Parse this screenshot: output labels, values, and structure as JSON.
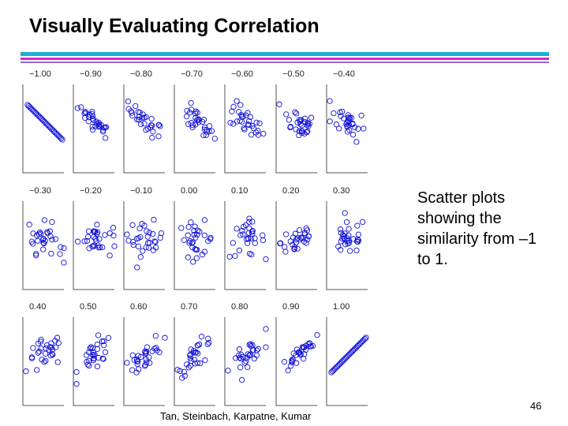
{
  "slide": {
    "title": "Visually Evaluating Correlation",
    "caption": "Scatter plots showing the similarity from –1 to 1.",
    "footer": "Tan, Steinbach, Karpatne, Kumar",
    "page_number": "46"
  },
  "colors": {
    "bar_top": "#1ab0d8",
    "bar_mid": "#d428c9",
    "bar_bot": "#9966cc",
    "point": "#1010d8",
    "axis": "#555555"
  },
  "chart_data": {
    "type": "scatter",
    "layout": "small-multiples",
    "rows": 3,
    "cols": 7,
    "points_per_panel": 30,
    "panels": [
      {
        "label": "−1.00",
        "r": -1.0
      },
      {
        "label": "−0.90",
        "r": -0.9
      },
      {
        "label": "−0.80",
        "r": -0.8
      },
      {
        "label": "−0.70",
        "r": -0.7
      },
      {
        "label": "−0.60",
        "r": -0.6
      },
      {
        "label": "−0.50",
        "r": -0.5
      },
      {
        "label": "−0.40",
        "r": -0.4
      },
      {
        "label": "−0.30",
        "r": -0.3
      },
      {
        "label": "−0.20",
        "r": -0.2
      },
      {
        "label": "−0.10",
        "r": -0.1
      },
      {
        "label": "0.00",
        "r": 0.0
      },
      {
        "label": "0.10",
        "r": 0.1
      },
      {
        "label": "0.20",
        "r": 0.2
      },
      {
        "label": "0.30",
        "r": 0.3
      },
      {
        "label": "0.40",
        "r": 0.4
      },
      {
        "label": "0.50",
        "r": 0.5
      },
      {
        "label": "0.60",
        "r": 0.6
      },
      {
        "label": "0.70",
        "r": 0.7
      },
      {
        "label": "0.80",
        "r": 0.8
      },
      {
        "label": "0.90",
        "r": 0.9
      },
      {
        "label": "1.00",
        "r": 1.0
      }
    ]
  }
}
